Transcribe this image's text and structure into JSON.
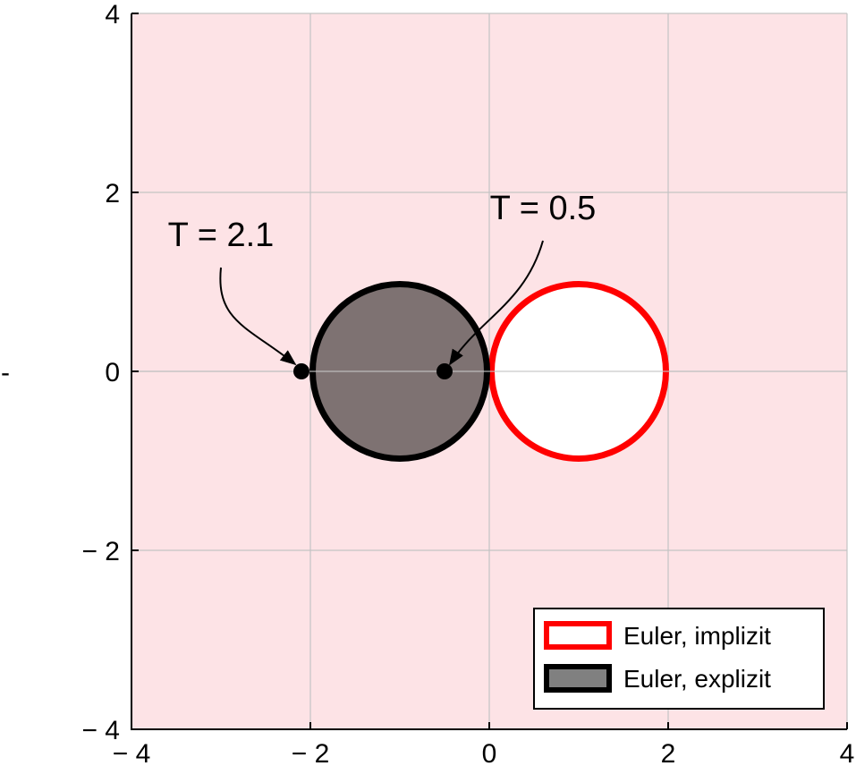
{
  "chart_data": {
    "type": "region-plot",
    "title": "",
    "xlabel": "",
    "ylabel": "",
    "xlim": [
      -4,
      4
    ],
    "ylim": [
      -4,
      4
    ],
    "xticks": [
      -4,
      -2,
      0,
      2,
      4
    ],
    "yticks": [
      -4,
      -2,
      0,
      2,
      4
    ],
    "xtick_labels": [
      "− 4",
      "− 2",
      "0",
      "2",
      "4"
    ],
    "ytick_labels": [
      "− 4",
      "− 2",
      "0",
      "2",
      "4"
    ],
    "grid": true,
    "ylabel_mark": "-",
    "background_color": "#fde3e6",
    "regions": [
      {
        "name": "Euler, implizit",
        "shape": "circle",
        "center": [
          1,
          0
        ],
        "radius": 1,
        "fill": "#ffffff",
        "stroke": "#ff0000"
      },
      {
        "name": "Euler, explizit",
        "shape": "circle",
        "center": [
          -1,
          0
        ],
        "radius": 1,
        "fill": "#7e7272",
        "stroke": "#000000"
      }
    ],
    "points": [
      {
        "x": -2.1,
        "y": 0,
        "label": "T  =  2.1",
        "label_x": -3.0,
        "label_y": 1.4
      },
      {
        "x": -0.5,
        "y": 0,
        "label": "T  =  0.5",
        "label_x": 0.6,
        "label_y": 1.7
      }
    ],
    "legend": {
      "position": "bottom-right",
      "entries": [
        {
          "label": "Euler, implizit",
          "fill": "#ffffff",
          "stroke": "#ff0000"
        },
        {
          "label": "Euler, explizit",
          "fill": "#808080",
          "stroke": "#000000"
        }
      ]
    }
  }
}
